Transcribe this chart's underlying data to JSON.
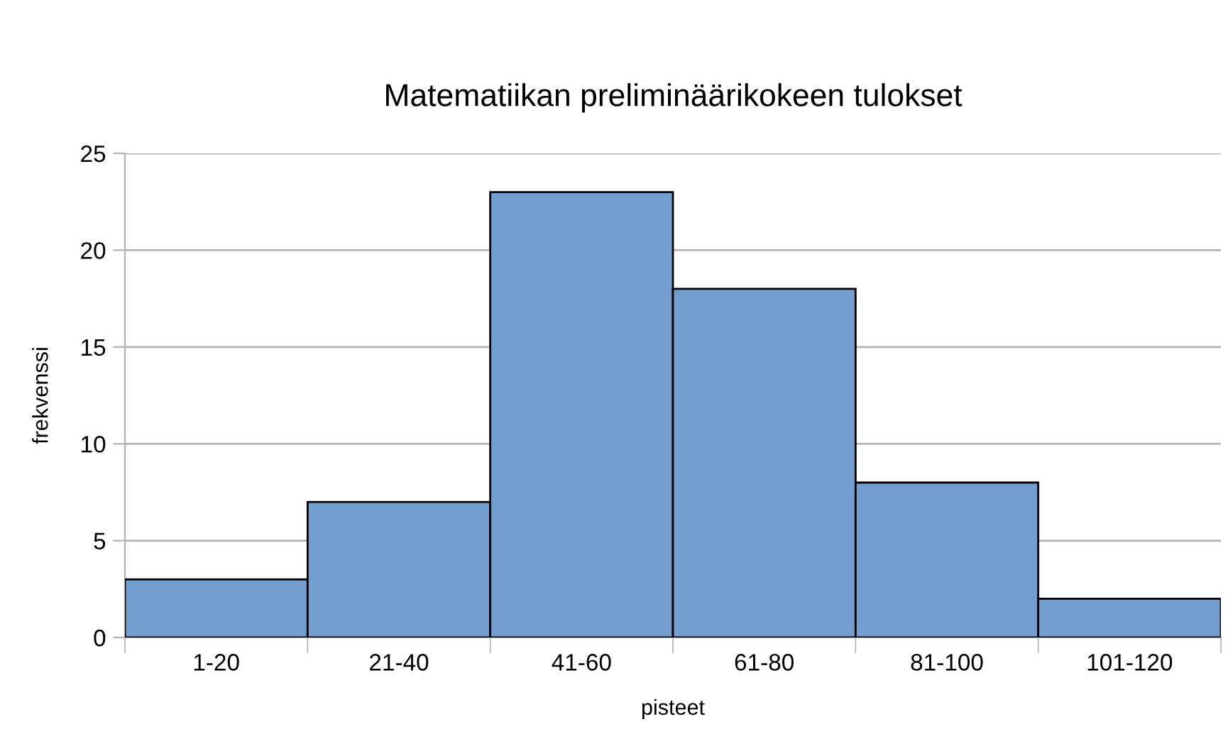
{
  "chart_data": {
    "type": "bar",
    "title": "Matematiikan preliminäärikokeen tulokset",
    "xlabel": "pisteet",
    "ylabel": "frekvenssi",
    "categories": [
      "1-20",
      "21-40",
      "41-60",
      "61-80",
      "81-100",
      "101-120"
    ],
    "values": [
      3,
      7,
      23,
      18,
      8,
      2
    ],
    "color": "#729fcf",
    "ylim": [
      0,
      25
    ],
    "yticks": [
      0,
      5,
      10,
      15,
      20,
      25
    ],
    "grid": "y",
    "legend": false
  }
}
